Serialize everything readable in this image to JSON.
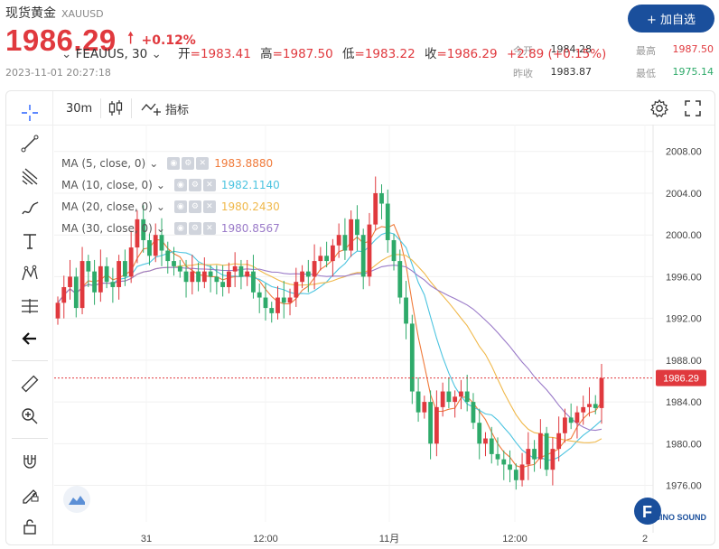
{
  "header": {
    "title": "现货黄金",
    "symbol": "XAUUSD",
    "price": "1986.29",
    "change_pct": "+0.12%",
    "timestamp": "2023-11-01 20:27:18",
    "add_button": "+ 加自选",
    "stats": {
      "open_label": "今开",
      "open_value": "1984.28",
      "high_label": "最高",
      "high_value": "1987.50",
      "prev_close_label": "昨收",
      "prev_close_value": "1983.87",
      "low_label": "最低",
      "low_value": "1975.14"
    },
    "colors": {
      "up": "#e0393e",
      "down": "#2eaa6a",
      "button": "#1a4f9c"
    }
  },
  "toolbar": {
    "interval": "30m",
    "indicators_label": "指标"
  },
  "left_tools": [
    "crosshair-icon",
    "trendline-icon",
    "fib-icon",
    "brush-icon",
    "text-icon",
    "pattern-icon",
    "measure-lines-icon",
    "back-arrow-icon",
    "ruler-icon",
    "zoom-in-icon",
    "magnet-icon",
    "lock-edit-icon",
    "lock-icon"
  ],
  "legend": {
    "symbol": "FEAUUS, 30",
    "open_label": "开",
    "open": "=1983.41",
    "high_label": "高",
    "high": "=1987.50",
    "low_label": "低",
    "low": "=1983.22",
    "close_label": "收",
    "close": "=1986.29",
    "change": "+2.89 (+0.15%)"
  },
  "ma_lines": [
    {
      "label": "MA (5, close, 0)",
      "value": "1983.8880",
      "color": "#f07a3a"
    },
    {
      "label": "MA (10, close, 0)",
      "value": "1982.1140",
      "color": "#4cc4e0"
    },
    {
      "label": "MA (20, close, 0)",
      "value": "1980.2430",
      "color": "#f0b84a"
    },
    {
      "label": "MA (30, close, 0)",
      "value": "1980.8567",
      "color": "#9a7ac8"
    }
  ],
  "logo_text": "SINO SOUND",
  "chart_data": {
    "type": "candlestick",
    "y_ticks": [
      "2008.00",
      "2004.00",
      "2000.00",
      "1996.00",
      "1992.00",
      "1988.00",
      "1984.00",
      "1980.00",
      "1976.00"
    ],
    "ylim": [
      1972.5,
      2010.4
    ],
    "x_ticks": [
      "31",
      "12:00",
      "11月",
      "12:00",
      "2"
    ],
    "last_price_label": "1986.29",
    "last_price": 1986.29,
    "closes": [
      1993.5,
      1995.0,
      1996.0,
      1993.0,
      1997.5,
      1996.5,
      1994.5,
      1997.0,
      1995.5,
      1995.0,
      1997.5,
      1996.0,
      1998.8,
      2001.5,
      1999.5,
      1998.0,
      2000.0,
      1998.5,
      1997.5,
      1997.0,
      1996.5,
      1995.5,
      1996.5,
      1995.5,
      1996.5,
      1996.0,
      1995.5,
      1995.0,
      1996.5,
      1997.0,
      1996.0,
      1996.5,
      1994.5,
      1994.0,
      1993.0,
      1992.5,
      1994.0,
      1993.5,
      1994.0,
      1995.5,
      1996.5,
      1996.0,
      1997.5,
      1998.0,
      1997.5,
      1999.0,
      2000.0,
      1998.5,
      2001.5,
      2000.0,
      1996.0,
      2001.0,
      2004.0,
      2003.0,
      1999.5,
      1997.5,
      1994.0,
      1991.5,
      1985.0,
      1983.0,
      1984.0,
      1980.0,
      1983.5,
      1985.0,
      1984.0,
      1984.5,
      1985.0,
      1984.0,
      1982.0,
      1980.0,
      1980.5,
      1979.0,
      1978.5,
      1978.0,
      1977.5,
      1976.5,
      1978.0,
      1979.5,
      1978.5,
      1981.0,
      1977.5,
      1979.5,
      1981.0,
      1982.5,
      1982.0,
      1983.0,
      1983.5,
      1983.8,
      1983.41,
      1986.29
    ],
    "series": [
      {
        "name": "MA (5, close, 0)",
        "value": 1983.888
      },
      {
        "name": "MA (10, close, 0)",
        "value": 1982.114
      },
      {
        "name": "MA (20, close, 0)",
        "value": 1980.243
      },
      {
        "name": "MA (30, close, 0)",
        "value": 1980.8567
      }
    ]
  }
}
